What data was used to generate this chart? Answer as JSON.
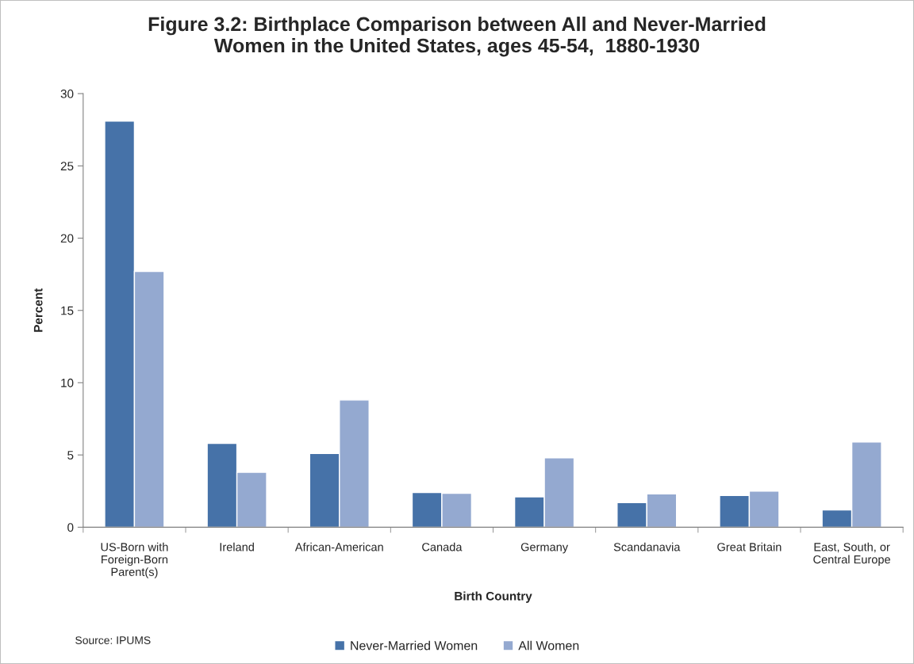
{
  "chart_data": {
    "type": "bar",
    "title": "Figure 3.2: Birthplace Comparison between All and Never-Married\nWomen in the United States, ages 45-54,  1880-1930",
    "xlabel": "Birth Country",
    "ylabel": "Percent",
    "categories": [
      "US-Born with\nForeign-Born\nParent(s)",
      "Ireland",
      "African-American",
      "Canada",
      "Germany",
      "Scandanavia",
      "Great Britain",
      "East, South, or\nCentral Europe"
    ],
    "series": [
      {
        "name": "Never-Married Women",
        "color": "#4672a8",
        "values": [
          28.1,
          5.8,
          5.1,
          2.4,
          2.1,
          1.7,
          2.2,
          1.2
        ]
      },
      {
        "name": "All Women",
        "color": "#94a9d0",
        "values": [
          17.7,
          3.8,
          8.8,
          2.35,
          4.8,
          2.3,
          2.5,
          5.9
        ]
      }
    ],
    "ylim": [
      0,
      30
    ],
    "yticks": [
      0,
      5,
      10,
      15,
      20,
      25,
      30
    ],
    "grid": false,
    "legend": "bottom",
    "annotations": [
      "Source: IPUMS"
    ]
  }
}
